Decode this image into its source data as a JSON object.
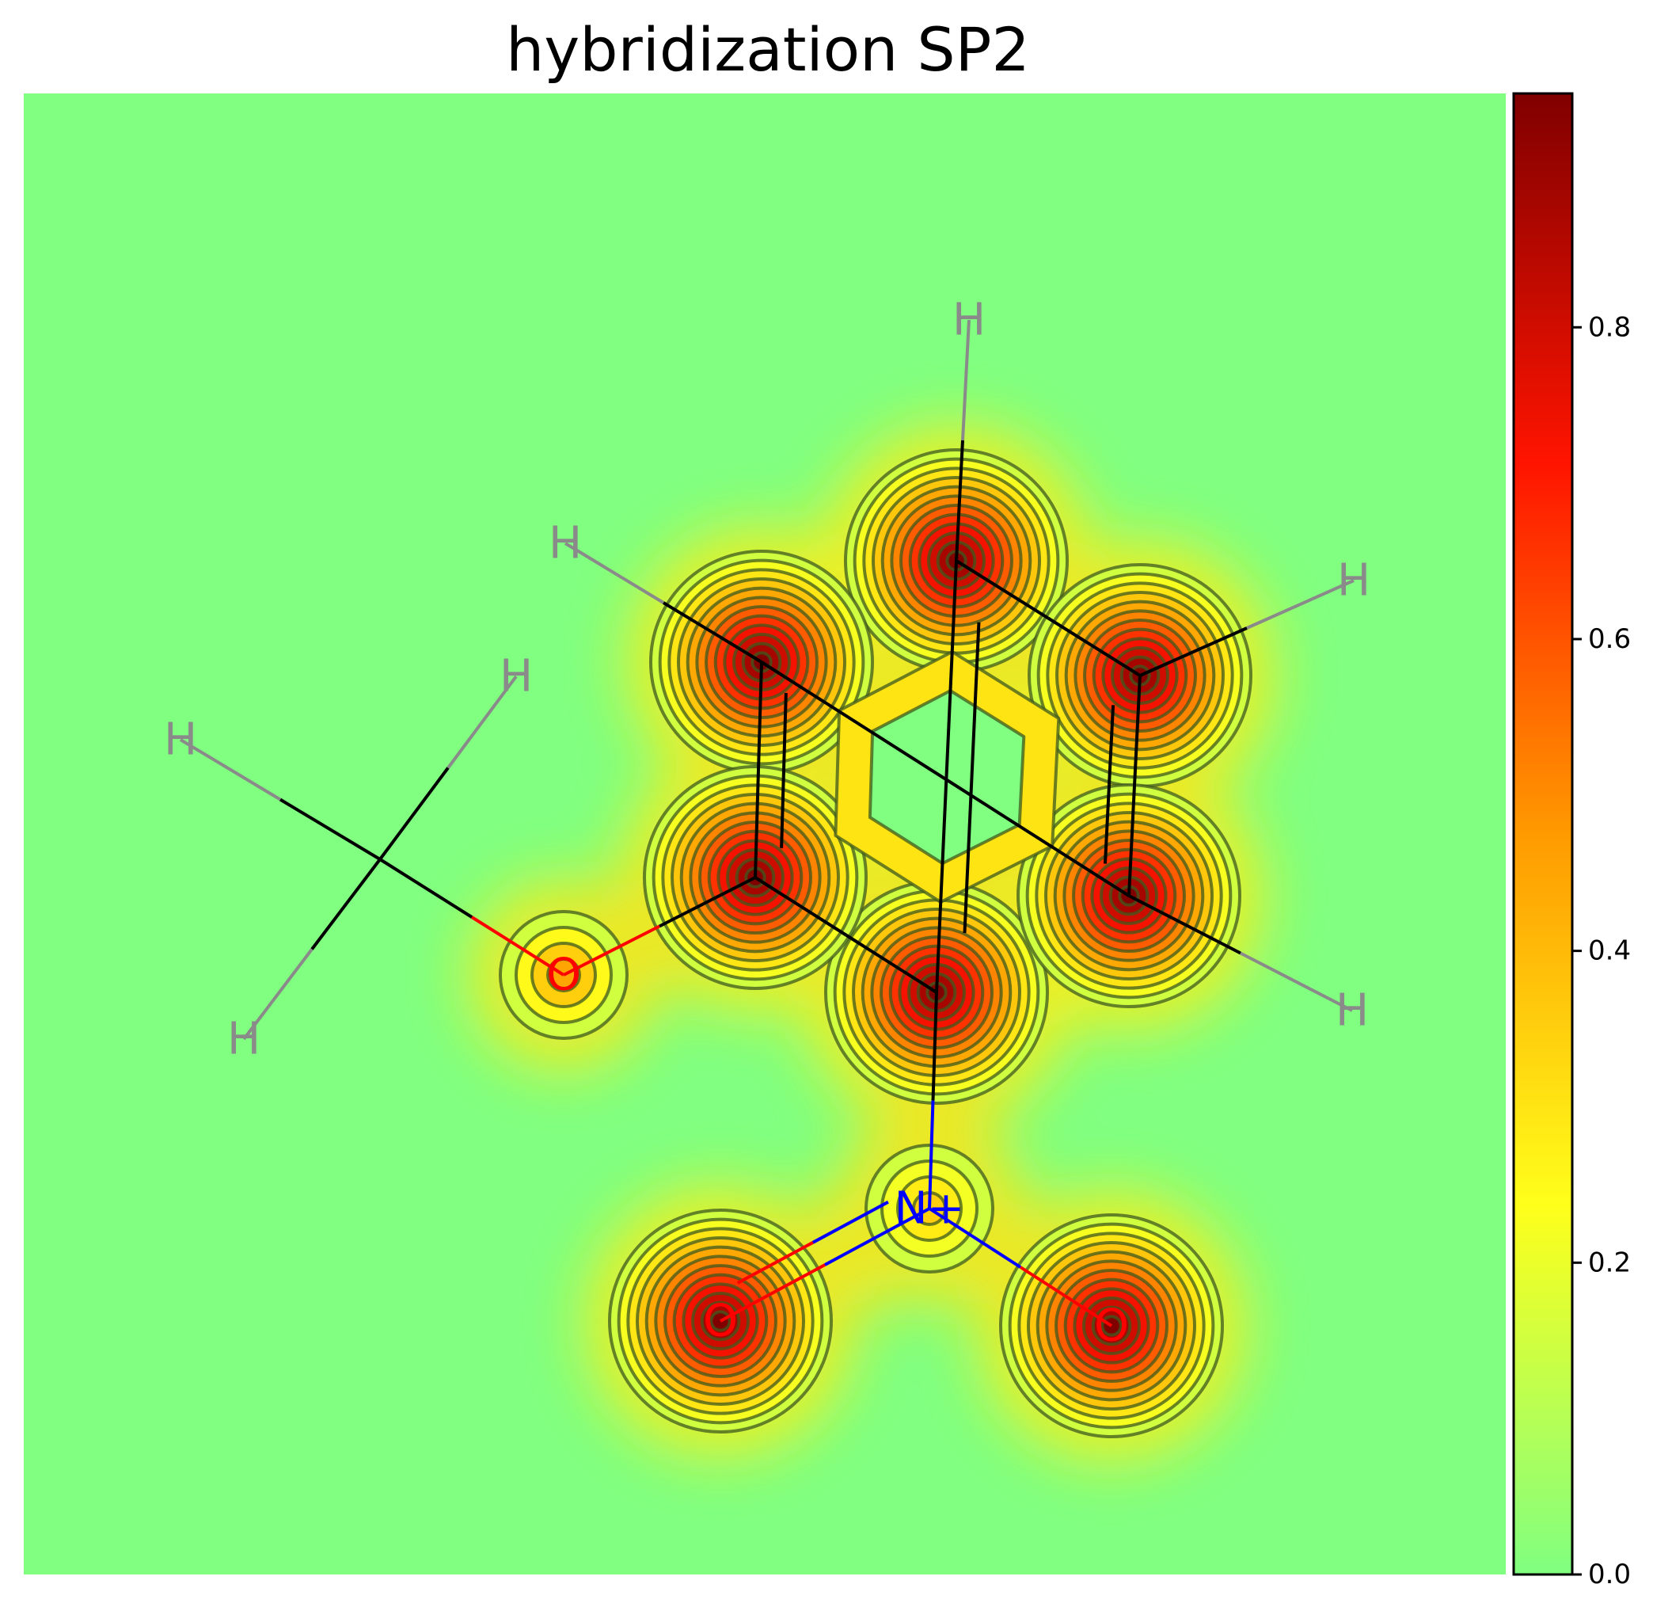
{
  "chart_data": {
    "type": "heatmap",
    "title": "hybridization SP2",
    "xlabel": "",
    "ylabel": "",
    "colormap": "jet (upper half: green to dark red)",
    "colorbar": {
      "range": [
        0.0,
        0.95
      ],
      "ticks": [
        0.0,
        0.2,
        0.4,
        0.6,
        0.8
      ],
      "tick_labels": [
        "0.0",
        "0.2",
        "0.4",
        "0.6",
        "0.8"
      ],
      "colors": [
        "#80ff80",
        "#ffff1a",
        "#ff9a00",
        "#ff1400",
        "#800000"
      ]
    },
    "grid": false,
    "contour_lines": true,
    "molecule": {
      "atoms": [
        {
          "id": "C1",
          "label": "",
          "element": "C",
          "value": 0.95
        },
        {
          "id": "C2",
          "label": "",
          "element": "C",
          "value": 0.95
        },
        {
          "id": "C3",
          "label": "",
          "element": "C",
          "value": 0.95
        },
        {
          "id": "C4",
          "label": "",
          "element": "C",
          "value": 0.95
        },
        {
          "id": "C5",
          "label": "",
          "element": "C",
          "value": 0.95
        },
        {
          "id": "C6",
          "label": "",
          "element": "C",
          "value": 0.95
        },
        {
          "id": "O1",
          "label": "O",
          "element": "O",
          "value": 0.45
        },
        {
          "id": "CH3",
          "label": "",
          "element": "C",
          "value": 0.0
        },
        {
          "id": "N1",
          "label": "N+",
          "element": "N",
          "value": 0.35
        },
        {
          "id": "O2",
          "label": "O",
          "element": "O",
          "value": 0.95
        },
        {
          "id": "O3",
          "label": "O",
          "element": "O",
          "value": 0.95
        },
        {
          "id": "H1",
          "label": "H",
          "element": "H",
          "value": 0.0
        },
        {
          "id": "H2",
          "label": "H",
          "element": "H",
          "value": 0.0
        },
        {
          "id": "H3",
          "label": "H",
          "element": "H",
          "value": 0.0
        },
        {
          "id": "H4",
          "label": "H",
          "element": "H",
          "value": 0.0
        },
        {
          "id": "H5",
          "label": "H",
          "element": "H",
          "value": 0.0
        },
        {
          "id": "H6",
          "label": "H",
          "element": "H",
          "value": 0.0
        },
        {
          "id": "H7",
          "label": "H",
          "element": "H",
          "value": 0.0
        }
      ],
      "bonds": [
        {
          "a": "C1",
          "b": "C2",
          "order": 2
        },
        {
          "a": "C2",
          "b": "C3",
          "order": 1
        },
        {
          "a": "C3",
          "b": "C4",
          "order": 2
        },
        {
          "a": "C4",
          "b": "C5",
          "order": 1
        },
        {
          "a": "C5",
          "b": "C6",
          "order": 2
        },
        {
          "a": "C6",
          "b": "C1",
          "order": 1
        },
        {
          "a": "C6",
          "b": "O1",
          "order": 1
        },
        {
          "a": "O1",
          "b": "CH3",
          "order": 1
        },
        {
          "a": "C1",
          "b": "N1",
          "order": 1
        },
        {
          "a": "N1",
          "b": "O2",
          "order": 2
        },
        {
          "a": "N1",
          "b": "O3",
          "order": 1
        },
        {
          "a": "C2",
          "b": "H1",
          "order": 1
        },
        {
          "a": "C4",
          "b": "H2",
          "order": 1
        },
        {
          "a": "C3",
          "b": "H3",
          "order": 1
        },
        {
          "a": "C5",
          "b": "H4",
          "order": 1
        },
        {
          "a": "CH3",
          "b": "H5",
          "order": 1
        },
        {
          "a": "CH3",
          "b": "H6",
          "order": 1
        },
        {
          "a": "CH3",
          "b": "H7",
          "order": 1
        }
      ]
    }
  }
}
